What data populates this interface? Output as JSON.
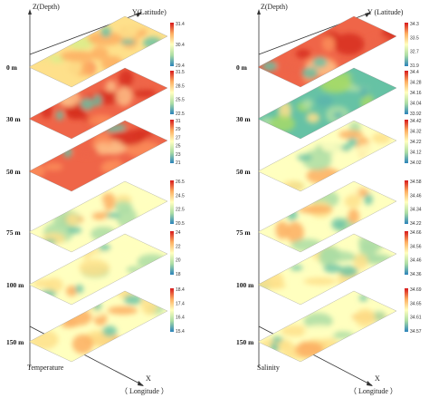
{
  "panels": [
    {
      "id": "temperature",
      "z_axis_label": "Z(Depth)",
      "y_axis_label": "Y(Latitude)",
      "x_axis_label": "X",
      "x_axis_sublabel": "（ Longitude ）",
      "variable_label": "Temperature",
      "layers": [
        {
          "depth": "0 m",
          "colorbar_ticks": [
            "31.4",
            "30.4",
            "29.4"
          ],
          "palette": "warm"
        },
        {
          "depth": "30 m",
          "colorbar_ticks": [
            "31.5",
            "28.5",
            "25.5",
            "22.5"
          ],
          "palette": "hot"
        },
        {
          "depth": "50 m",
          "colorbar_ticks": [
            "31",
            "29",
            "27",
            "25",
            "23",
            "21"
          ],
          "palette": "hot"
        },
        {
          "depth": "75 m",
          "colorbar_ticks": [
            "26.5",
            "24.5",
            "22.5",
            "20.5"
          ],
          "palette": "mixed"
        },
        {
          "depth": "100 m",
          "colorbar_ticks": [
            "24",
            "22",
            "20",
            "18"
          ],
          "palette": "mixed"
        },
        {
          "depth": "150 m",
          "colorbar_ticks": [
            "18.4",
            "17.4",
            "16.4",
            "15.4"
          ],
          "palette": "mixed"
        }
      ]
    },
    {
      "id": "salinity",
      "z_axis_label": "Z(Depth)",
      "y_axis_label": "Y (Latitude)",
      "x_axis_label": "X",
      "x_axis_sublabel": "（ Longitude ）",
      "variable_label": "Salinity",
      "layers": [
        {
          "depth": "0 m",
          "colorbar_ticks": [
            "34.3",
            "33.5",
            "32.7",
            "31.9"
          ],
          "palette": "hot"
        },
        {
          "depth": "30 m",
          "colorbar_ticks": [
            "34.4",
            "34.28",
            "34.16",
            "34.04",
            "33.92"
          ],
          "palette": "cool"
        },
        {
          "depth": "50 m",
          "colorbar_ticks": [
            "34.42",
            "34.32",
            "34.22",
            "34.12",
            "34.02"
          ],
          "palette": "mixed"
        },
        {
          "depth": "75 m",
          "colorbar_ticks": [
            "34.58",
            "34.46",
            "34.34",
            "34.22"
          ],
          "palette": "mixed"
        },
        {
          "depth": "100 m",
          "colorbar_ticks": [
            "34.66",
            "34.56",
            "34.46",
            "34.36"
          ],
          "palette": "mixed"
        },
        {
          "depth": "150 m",
          "colorbar_ticks": [
            "34.69",
            "34.65",
            "34.61",
            "34.57"
          ],
          "palette": "mixed"
        }
      ]
    }
  ],
  "colors": {
    "hot": [
      "#d7301f",
      "#ef6548",
      "#fc8d59",
      "#fdbb84"
    ],
    "warm": [
      "#fdae61",
      "#fee08b",
      "#fc8d59",
      "#d9ef8b"
    ],
    "cool": [
      "#a6d96a",
      "#66c2a5",
      "#abdda4",
      "#fee08b"
    ],
    "mixed": [
      "#fee08b",
      "#ffffbf",
      "#fdae61",
      "#abdda4"
    ],
    "colorbar": [
      "#d7191c",
      "#fdae61",
      "#ffffbf",
      "#abdda4",
      "#2b83ba"
    ]
  }
}
